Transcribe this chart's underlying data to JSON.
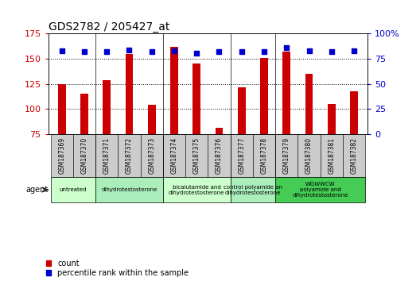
{
  "title": "GDS2782 / 205427_at",
  "samples": [
    "GSM187369",
    "GSM187370",
    "GSM187371",
    "GSM187372",
    "GSM187373",
    "GSM187374",
    "GSM187375",
    "GSM187376",
    "GSM187377",
    "GSM187378",
    "GSM187379",
    "GSM187380",
    "GSM187381",
    "GSM187382"
  ],
  "count_values": [
    125,
    115,
    129,
    155,
    104,
    162,
    145,
    81,
    122,
    151,
    157,
    135,
    105,
    118
  ],
  "percentile_values": [
    83,
    82,
    82,
    84,
    82,
    83,
    81,
    82,
    82,
    82,
    86,
    83,
    82,
    83
  ],
  "ylim_left": [
    75,
    175
  ],
  "ylim_right": [
    0,
    100
  ],
  "yticks_left": [
    75,
    100,
    125,
    150,
    175
  ],
  "yticks_right": [
    0,
    25,
    50,
    75,
    100
  ],
  "bar_color": "#cc0000",
  "dot_color": "#0000cc",
  "groups": [
    {
      "label": "untreated",
      "indices": [
        0,
        1
      ],
      "color": "#ccffcc"
    },
    {
      "label": "dihydrotestosterone",
      "indices": [
        2,
        3,
        4
      ],
      "color": "#aaeebb"
    },
    {
      "label": "bicalutamide and\ndihydrotestosterone",
      "indices": [
        5,
        6,
        7
      ],
      "color": "#ccffcc"
    },
    {
      "label": "control polyamide an\ndihydrotestosterone",
      "indices": [
        8,
        9
      ],
      "color": "#aaeebb"
    },
    {
      "label": "WGWWCW\npolyamide and\ndihydrotestosterone",
      "indices": [
        10,
        11,
        12,
        13
      ],
      "color": "#44cc55"
    }
  ],
  "legend_count_label": "count",
  "legend_pct_label": "percentile rank within the sample",
  "agent_label": "agent",
  "plot_bg": "#ffffff",
  "right_axis_color": "#0000cc",
  "left_axis_color": "#cc0000",
  "right_tick_label": "100%",
  "label_bg_color": "#cccccc"
}
